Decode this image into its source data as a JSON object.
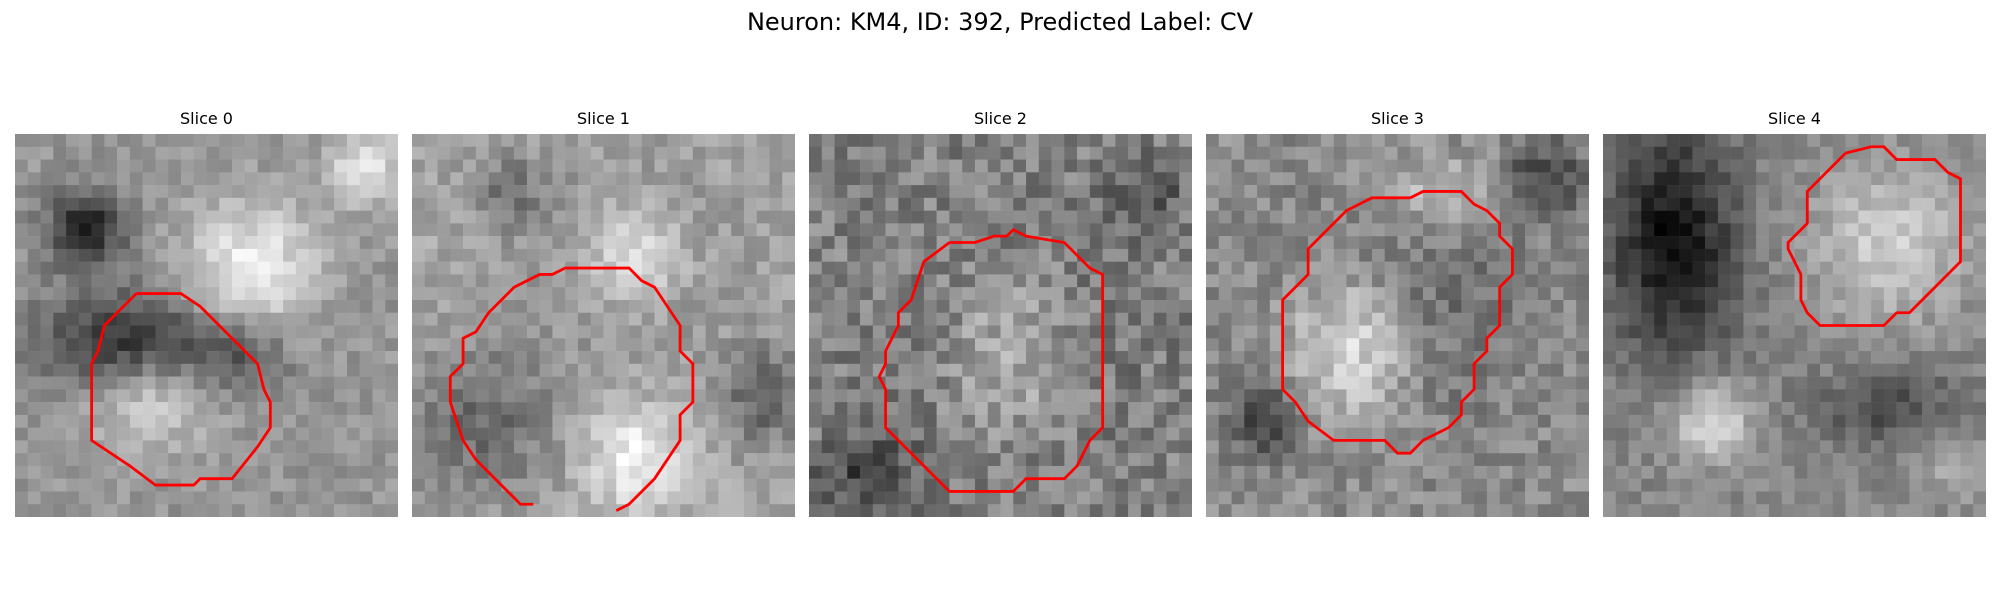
{
  "figure": {
    "title": "Neuron: KM4, ID: 392, Predicted Label: CV"
  },
  "panels": [
    {
      "title": "Slice 0"
    },
    {
      "title": "Slice 1"
    },
    {
      "title": "Slice 2"
    },
    {
      "title": "Slice 3"
    },
    {
      "title": "Slice 4"
    }
  ],
  "colors": {
    "contour": "#ff0000",
    "image_colormap": "gray"
  }
}
